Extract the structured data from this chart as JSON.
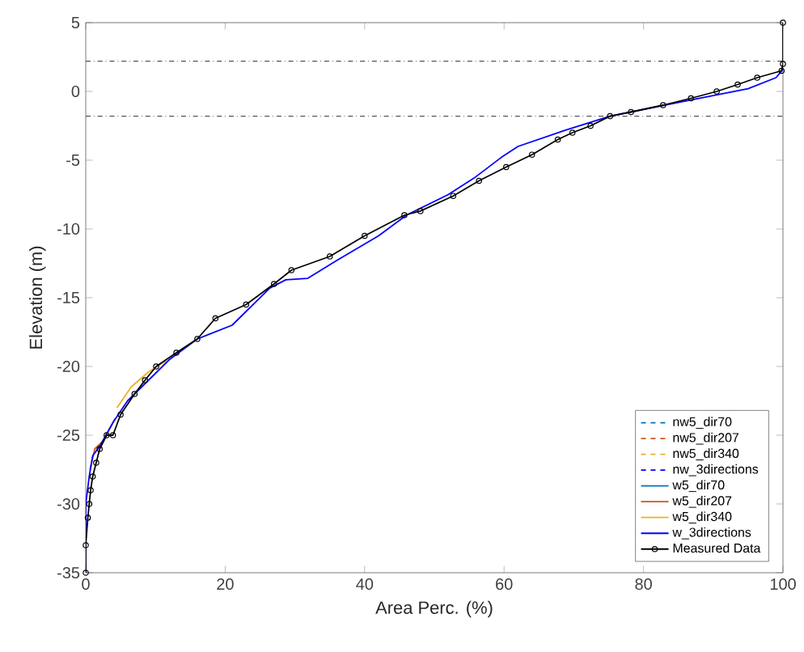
{
  "chart_data": {
    "type": "line",
    "xlabel": "Area Perc. (%)",
    "ylabel": "Elevation (m)",
    "xlim": [
      0,
      100
    ],
    "ylim": [
      -35,
      5
    ],
    "xticks": [
      0,
      20,
      40,
      60,
      80,
      100
    ],
    "yticks": [
      -35,
      -30,
      -25,
      -20,
      -15,
      -10,
      -5,
      0,
      5
    ],
    "legend": "bottom right",
    "grid": false,
    "ref_lines": [
      {
        "axis": "y",
        "value": 2.2,
        "color": "#555555",
        "line_style": "dashdot"
      },
      {
        "axis": "y",
        "value": -1.8,
        "color": "#555555",
        "line_style": "dashdot"
      }
    ],
    "series": [
      {
        "name": "nw5_dir70",
        "color": "#0072bd",
        "line_style": "dashed",
        "marker": "none"
      },
      {
        "name": "nw5_dir207",
        "color": "#d95319",
        "line_style": "dashed",
        "marker": "none"
      },
      {
        "name": "nw5_dir340",
        "color": "#edb120",
        "line_style": "dashed",
        "marker": "none"
      },
      {
        "name": "nw_3directions",
        "color": "#0000ff",
        "line_style": "dashed",
        "marker": "none"
      },
      {
        "name": "w5_dir70",
        "color": "#0072bd",
        "line_style": "solid",
        "marker": "none"
      },
      {
        "name": "w5_dir207",
        "color": "#d95319",
        "line_style": "solid",
        "marker": "none",
        "x": [
          0.6,
          1.3,
          2.5,
          4.2
        ],
        "values": [
          -27.5,
          -26,
          -25.4,
          -23.8
        ]
      },
      {
        "name": "w5_dir340",
        "color": "#edb120",
        "line_style": "solid",
        "marker": "none",
        "x": [
          4.5,
          6.5,
          9,
          11.5
        ],
        "values": [
          -23,
          -21.5,
          -20.4,
          -19.6
        ]
      },
      {
        "name": "w_3directions",
        "color": "#0000ff",
        "line_style": "solid",
        "marker": "none",
        "x": [
          0,
          0,
          0.5,
          1,
          2,
          4,
          6,
          9,
          12,
          16,
          21,
          26.4,
          28.7,
          31.8,
          36,
          42,
          46,
          52,
          55.7,
          59.6,
          62,
          68.9,
          75.2,
          85,
          95,
          99,
          100
        ],
        "values": [
          -35,
          -30,
          -28,
          -26.5,
          -25.8,
          -24,
          -22.5,
          -21,
          -19.5,
          -18,
          -17,
          -14.3,
          -13.7,
          -13.6,
          -12.3,
          -10.5,
          -9,
          -7.5,
          -6.3,
          -4.8,
          -4,
          -2.8,
          -1.8,
          -0.8,
          0.2,
          1,
          1.6
        ]
      },
      {
        "name": "Measured Data",
        "color": "#000000",
        "line_style": "solid",
        "marker": "circle",
        "x": [
          0,
          0,
          0.3,
          0.5,
          0.7,
          1,
          1.5,
          2,
          3,
          3.9,
          5,
          7,
          8.5,
          10.1,
          13,
          16,
          18.6,
          23,
          27,
          29.5,
          35,
          40,
          45.7,
          48,
          52.7,
          56.4,
          60.3,
          64,
          67.7,
          69.8,
          72.4,
          75.2,
          78.2,
          82.8,
          86.8,
          90.5,
          93.5,
          96.3,
          99.8,
          100,
          100
        ],
        "values": [
          -35,
          -33,
          -31,
          -30,
          -29,
          -28,
          -27,
          -26,
          -25,
          -25,
          -23.5,
          -22,
          -21,
          -20,
          -19,
          -18,
          -16.5,
          -15.5,
          -14,
          -13,
          -12,
          -10.5,
          -9,
          -8.7,
          -7.6,
          -6.5,
          -5.5,
          -4.6,
          -3.5,
          -3,
          -2.5,
          -1.8,
          -1.5,
          -1,
          -0.5,
          0,
          0.5,
          1,
          1.5,
          2,
          5
        ]
      }
    ]
  }
}
